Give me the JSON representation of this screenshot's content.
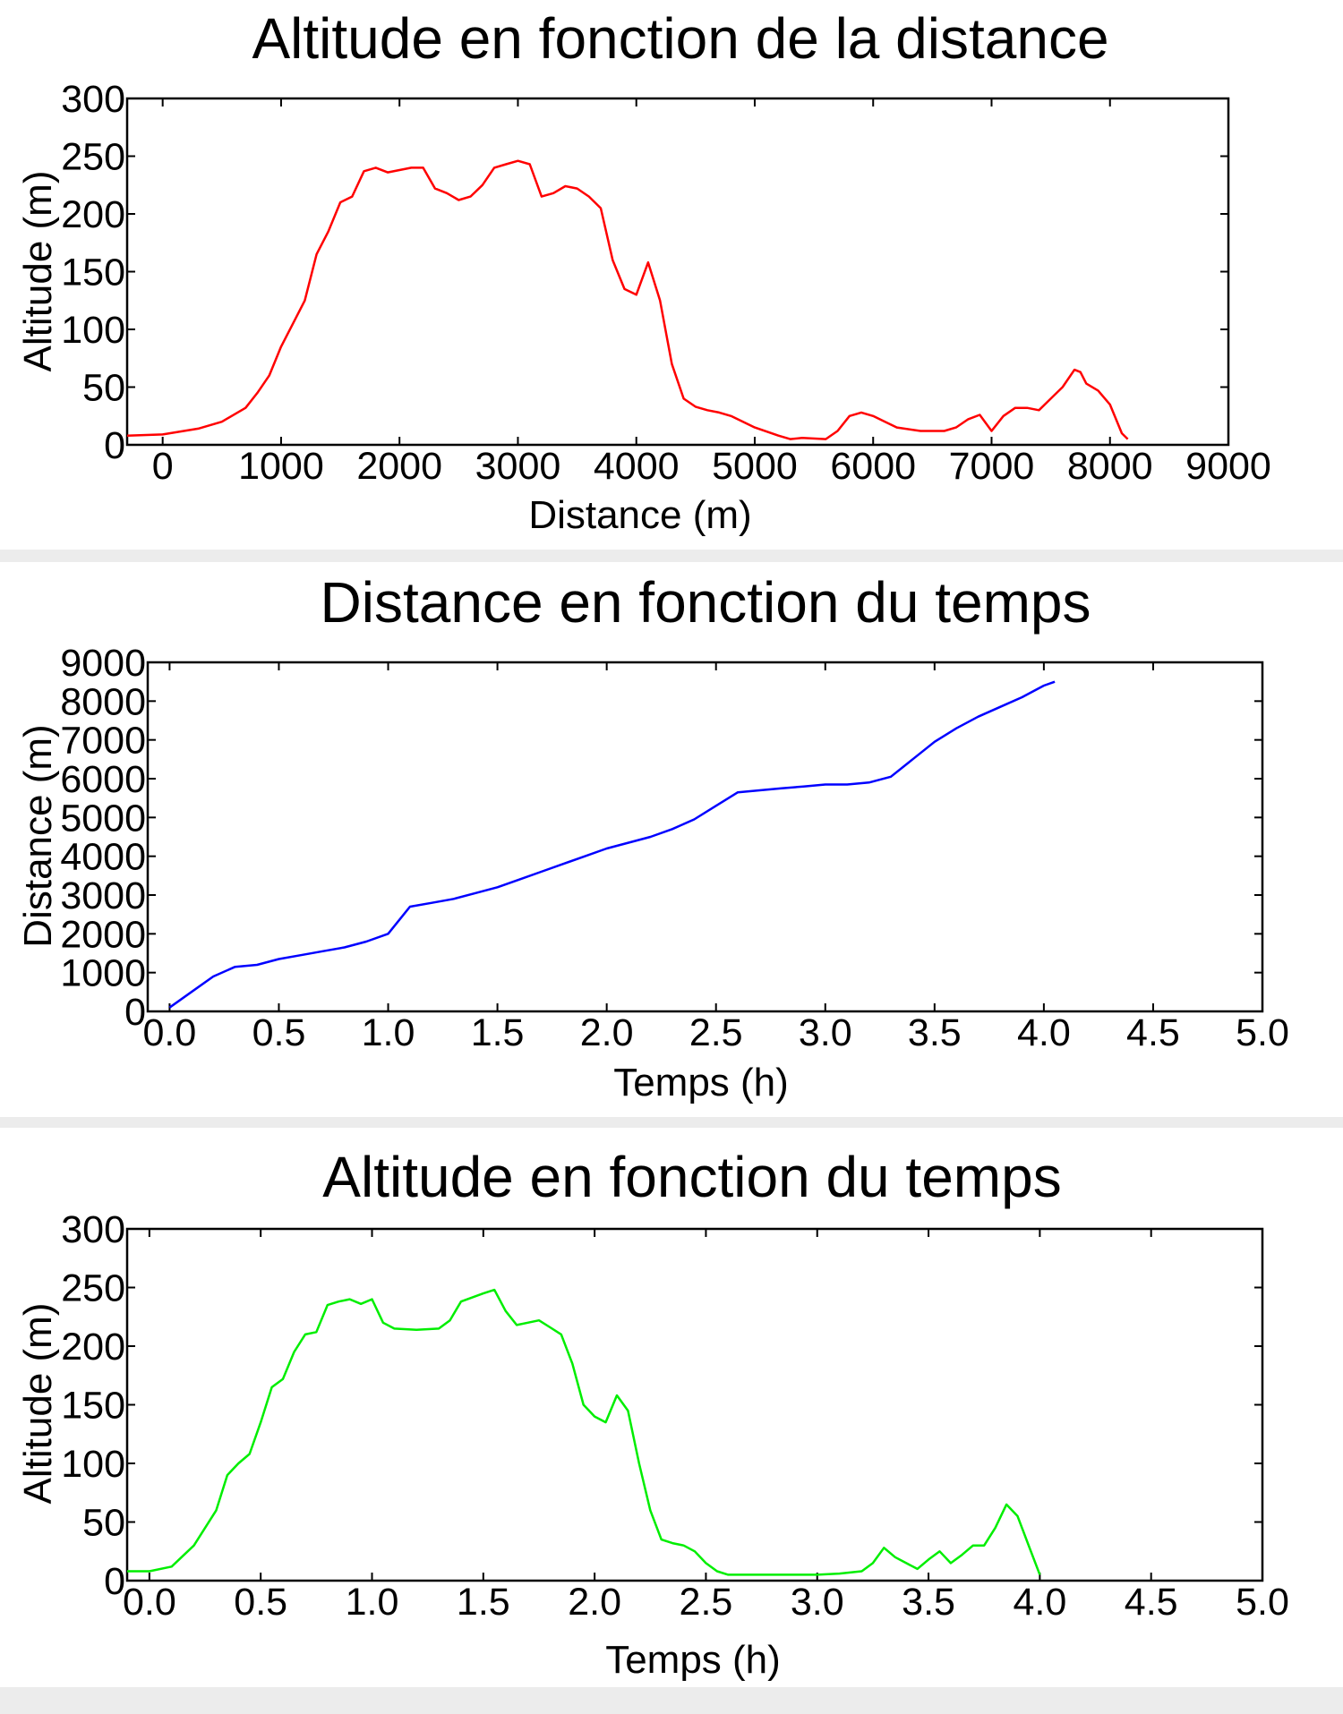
{
  "chart_data": [
    {
      "type": "line",
      "title": "Altitude en fonction de la distance",
      "xlabel": "Distance (m)",
      "ylabel": "Altitude (m)",
      "xlim": [
        -300,
        9000
      ],
      "ylim": [
        0,
        300
      ],
      "xticks": [
        "0",
        "1000",
        "2000",
        "3000",
        "4000",
        "5000",
        "6000",
        "7000",
        "8000",
        "9000"
      ],
      "xtick_values": [
        0,
        1000,
        2000,
        3000,
        4000,
        5000,
        6000,
        7000,
        8000,
        9000
      ],
      "yticks": [
        "0",
        "50",
        "100",
        "150",
        "200",
        "250",
        "300"
      ],
      "ytick_values": [
        0,
        50,
        100,
        150,
        200,
        250,
        300
      ],
      "grid": false,
      "color": "#ff0000",
      "series": [
        {
          "x": [
            -300,
            0,
            300,
            500,
            700,
            800,
            900,
            1000,
            1100,
            1200,
            1300,
            1400,
            1500,
            1600,
            1700,
            1800,
            1900,
            2000,
            2100,
            2200,
            2300,
            2400,
            2500,
            2600,
            2700,
            2800,
            2900,
            3000,
            3100,
            3200,
            3300,
            3400,
            3500,
            3600,
            3700,
            3800,
            3900,
            4000,
            4100,
            4200,
            4300,
            4400,
            4500,
            4600,
            4700,
            4800,
            5000,
            5200,
            5300,
            5400,
            5600,
            5700,
            5800,
            5900,
            6000,
            6100,
            6200,
            6400,
            6600,
            6700,
            6800,
            6900,
            7000,
            7100,
            7200,
            7300,
            7400,
            7500,
            7600,
            7700,
            7750,
            7800,
            7900,
            8000,
            8100,
            8150
          ],
          "y": [
            8,
            9,
            14,
            20,
            32,
            45,
            60,
            85,
            105,
            125,
            165,
            185,
            210,
            215,
            237,
            240,
            236,
            238,
            240,
            240,
            222,
            218,
            212,
            215,
            225,
            240,
            243,
            246,
            243,
            215,
            218,
            224,
            222,
            215,
            205,
            160,
            135,
            130,
            158,
            125,
            70,
            40,
            33,
            30,
            28,
            25,
            15,
            8,
            5,
            6,
            5,
            12,
            25,
            28,
            25,
            20,
            15,
            12,
            12,
            15,
            22,
            26,
            12,
            25,
            32,
            32,
            30,
            40,
            50,
            65,
            63,
            53,
            47,
            35,
            10,
            5
          ]
        }
      ]
    },
    {
      "type": "line",
      "title": "Distance en fonction du temps",
      "xlabel": "Temps (h)",
      "ylabel": "Distance (m)",
      "xlim": [
        -0.1,
        5.0
      ],
      "ylim": [
        0,
        9000
      ],
      "xticks": [
        "0.0",
        "0.5",
        "1.0",
        "1.5",
        "2.0",
        "2.5",
        "3.0",
        "3.5",
        "4.0",
        "4.5",
        "5.0"
      ],
      "xtick_values": [
        0,
        0.5,
        1,
        1.5,
        2,
        2.5,
        3,
        3.5,
        4,
        4.5,
        5
      ],
      "yticks": [
        "0",
        "1000",
        "2000",
        "3000",
        "4000",
        "5000",
        "6000",
        "7000",
        "8000",
        "9000"
      ],
      "ytick_values": [
        0,
        1000,
        2000,
        3000,
        4000,
        5000,
        6000,
        7000,
        8000,
        9000
      ],
      "grid": false,
      "color": "#0000ff",
      "series": [
        {
          "x": [
            0.0,
            0.1,
            0.2,
            0.3,
            0.4,
            0.5,
            0.6,
            0.7,
            0.8,
            0.9,
            1.0,
            1.1,
            1.2,
            1.3,
            1.4,
            1.5,
            1.6,
            1.7,
            1.8,
            1.9,
            2.0,
            2.1,
            2.2,
            2.3,
            2.4,
            2.5,
            2.6,
            2.7,
            2.8,
            2.9,
            3.0,
            3.1,
            3.2,
            3.3,
            3.4,
            3.5,
            3.6,
            3.7,
            3.8,
            3.9,
            4.0,
            4.05
          ],
          "y": [
            100,
            500,
            900,
            1150,
            1200,
            1350,
            1450,
            1550,
            1650,
            1800,
            2000,
            2700,
            2800,
            2900,
            3050,
            3200,
            3400,
            3600,
            3800,
            4000,
            4200,
            4350,
            4500,
            4700,
            4950,
            5300,
            5650,
            5700,
            5750,
            5800,
            5850,
            5850,
            5900,
            6050,
            6500,
            6950,
            7300,
            7600,
            7850,
            8100,
            8400,
            8500
          ]
        }
      ]
    },
    {
      "type": "line",
      "title": "Altitude en fonction du temps",
      "xlabel": "Temps (h)",
      "ylabel": "Altitude (m)",
      "xlim": [
        -0.1,
        5.0
      ],
      "ylim": [
        0,
        300
      ],
      "xticks": [
        "0.0",
        "0.5",
        "1.0",
        "1.5",
        "2.0",
        "2.5",
        "3.0",
        "3.5",
        "4.0",
        "4.5",
        "5.0"
      ],
      "xtick_values": [
        0,
        0.5,
        1,
        1.5,
        2,
        2.5,
        3,
        3.5,
        4,
        4.5,
        5
      ],
      "yticks": [
        "0",
        "50",
        "100",
        "150",
        "200",
        "250",
        "300"
      ],
      "ytick_values": [
        0,
        50,
        100,
        150,
        200,
        250,
        300
      ],
      "grid": false,
      "color": "#00ee00",
      "series": [
        {
          "x": [
            -0.1,
            0.0,
            0.1,
            0.2,
            0.3,
            0.35,
            0.4,
            0.45,
            0.5,
            0.55,
            0.6,
            0.65,
            0.7,
            0.75,
            0.8,
            0.85,
            0.9,
            0.95,
            1.0,
            1.05,
            1.1,
            1.2,
            1.3,
            1.35,
            1.4,
            1.5,
            1.55,
            1.6,
            1.65,
            1.7,
            1.75,
            1.8,
            1.85,
            1.9,
            1.95,
            2.0,
            2.05,
            2.1,
            2.15,
            2.2,
            2.25,
            2.3,
            2.35,
            2.4,
            2.45,
            2.5,
            2.55,
            2.6,
            2.7,
            2.8,
            2.9,
            3.0,
            3.1,
            3.2,
            3.25,
            3.3,
            3.35,
            3.4,
            3.45,
            3.5,
            3.55,
            3.6,
            3.65,
            3.7,
            3.75,
            3.8,
            3.85,
            3.9,
            3.95,
            4.0
          ],
          "y": [
            8,
            8,
            12,
            30,
            60,
            90,
            100,
            108,
            135,
            165,
            172,
            195,
            210,
            212,
            235,
            238,
            240,
            236,
            240,
            220,
            215,
            214,
            215,
            222,
            238,
            245,
            248,
            230,
            218,
            220,
            222,
            216,
            210,
            185,
            150,
            140,
            135,
            158,
            145,
            100,
            60,
            35,
            32,
            30,
            25,
            15,
            8,
            5,
            5,
            5,
            5,
            5,
            6,
            8,
            15,
            28,
            20,
            15,
            10,
            18,
            25,
            15,
            22,
            30,
            30,
            45,
            65,
            55,
            30,
            5
          ]
        }
      ]
    }
  ]
}
